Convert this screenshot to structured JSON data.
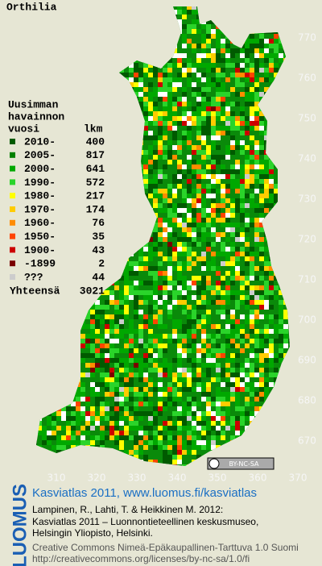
{
  "map": {
    "title": "Orthilia",
    "yticks": [
      770,
      760,
      750,
      740,
      730,
      720,
      710,
      700,
      690,
      680,
      670
    ],
    "xticks": [
      310,
      320,
      330,
      340,
      350,
      360,
      370
    ],
    "legend": {
      "heading": [
        "Uusimman",
        "havainnon",
        "vuosi"
      ],
      "count_heading": "lkm",
      "rows": [
        {
          "label": "2010-",
          "count": 400,
          "color": "#005a00"
        },
        {
          "label": "2005-",
          "count": 817,
          "color": "#008000"
        },
        {
          "label": "2000-",
          "count": 641,
          "color": "#00a800"
        },
        {
          "label": "1990-",
          "count": 572,
          "color": "#2ad42a"
        },
        {
          "label": "1980-",
          "count": 217,
          "color": "#ffff00"
        },
        {
          "label": "1970-",
          "count": 174,
          "color": "#ffcc00"
        },
        {
          "label": "1960-",
          "count": 76,
          "color": "#ff8c00"
        },
        {
          "label": "1950-",
          "count": 35,
          "color": "#ff4400"
        },
        {
          "label": "1900-",
          "count": 43,
          "color": "#cc0000"
        },
        {
          "label": "-1899",
          "count": 2,
          "color": "#7a0000"
        },
        {
          "label": "???",
          "count": 44,
          "color": "#cccccc"
        }
      ],
      "total_label": "Yhteensä",
      "total": 3021
    },
    "cc_badge": "BY-NC-SA"
  },
  "footer": {
    "brand": "LUOMUS",
    "headline": "Kasviatlas 2011, www.luomus.fi/kasviatlas",
    "lines": [
      "Lampinen, R., Lahti, T. & Heikkinen M. 2012:",
      "Kasviatlas 2011 – Luonnontieteellinen keskusmuseo,",
      "Helsingin Yliopisto, Helsinki."
    ],
    "license": [
      "Creative Commons Nimeä-Epäkaupallinen-Tarttuva 1.0 Suomi",
      "http://creativecommons.org/licenses/by-nc-sa/1.0/fi"
    ]
  }
}
